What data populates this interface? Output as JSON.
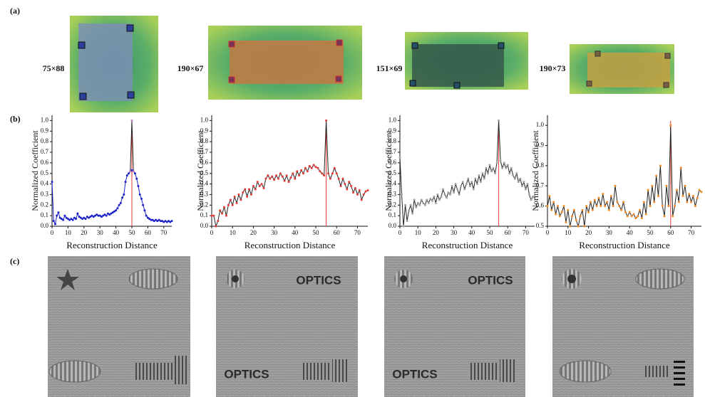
{
  "panel_labels": [
    "(a)",
    "(b)",
    "(c)"
  ],
  "sizes": [
    "75×88",
    "190×67",
    "151×69",
    "190×73"
  ],
  "reconstruction_texts": {
    "image_2": [
      "OPTICS",
      "OPTICS"
    ],
    "image_3": [
      "OPTICS",
      "OPTICS"
    ]
  },
  "chart_data": [
    {
      "type": "line",
      "xlabel": "Reconstruction Distance",
      "ylabel": "Normalized Coefficient",
      "x": [
        0,
        1,
        2,
        3,
        4,
        5,
        6,
        7,
        8,
        9,
        10,
        11,
        12,
        13,
        14,
        15,
        16,
        17,
        18,
        19,
        20,
        21,
        22,
        23,
        24,
        25,
        26,
        27,
        28,
        29,
        30,
        31,
        32,
        33,
        34,
        35,
        36,
        37,
        38,
        39,
        40,
        41,
        42,
        43,
        44,
        45,
        46,
        47,
        48,
        49,
        50,
        51,
        52,
        53,
        54,
        55,
        56,
        57,
        58,
        59,
        60,
        61,
        62,
        63,
        64,
        65,
        66,
        67,
        68,
        69,
        70,
        71,
        72,
        73,
        74,
        75
      ],
      "xlim": [
        0,
        75
      ],
      "xticks": [
        0,
        10,
        20,
        30,
        40,
        50,
        60,
        70
      ],
      "ylim": [
        0,
        1.05
      ],
      "yticks": [
        {
          "value": 0,
          "label": "0.0"
        },
        0.1,
        0.2,
        0.3,
        0.4,
        0.5,
        0.6,
        0.7,
        0.8,
        0.9,
        {
          "value": 1,
          "label": "1.0"
        }
      ],
      "peak_x": 50,
      "peak_color": "#e53935",
      "series": [
        {
          "color": "#1c22c8",
          "marker_color": "#1c22c8",
          "values": [
            0.42,
            0.05,
            0.02,
            0.1,
            0.13,
            0.08,
            0.07,
            0.06,
            0.1,
            0.08,
            0.07,
            0.06,
            0.07,
            0.06,
            0.08,
            0.07,
            0.12,
            0.09,
            0.08,
            0.07,
            0.08,
            0.07,
            0.09,
            0.08,
            0.09,
            0.1,
            0.09,
            0.1,
            0.11,
            0.1,
            0.1,
            0.09,
            0.1,
            0.11,
            0.1,
            0.12,
            0.11,
            0.12,
            0.13,
            0.14,
            0.15,
            0.17,
            0.2,
            0.22,
            0.27,
            0.3,
            0.42,
            0.48,
            0.5,
            0.52,
            0.53,
            0.52,
            0.5,
            0.45,
            0.38,
            0.3,
            0.26,
            0.2,
            0.15,
            0.1,
            0.08,
            0.07,
            0.06,
            0.06,
            0.05,
            0.06,
            0.05,
            0.06,
            0.05,
            0.05,
            0.04,
            0.05,
            0.04,
            0.05,
            0.04,
            0.05
          ]
        },
        {
          "color": "#222222",
          "marker_color": "#c080c0",
          "x": [
            49,
            50,
            51
          ],
          "values": [
            0.52,
            1.0,
            0.52
          ]
        }
      ]
    },
    {
      "type": "line",
      "xlabel": "Reconstruction Distance",
      "ylabel": "Normalized Coefficient",
      "x": [
        0,
        1,
        2,
        3,
        4,
        5,
        6,
        7,
        8,
        9,
        10,
        11,
        12,
        13,
        14,
        15,
        16,
        17,
        18,
        19,
        20,
        21,
        22,
        23,
        24,
        25,
        26,
        27,
        28,
        29,
        30,
        31,
        32,
        33,
        34,
        35,
        36,
        37,
        38,
        39,
        40,
        41,
        42,
        43,
        44,
        45,
        46,
        47,
        48,
        49,
        50,
        51,
        52,
        53,
        54,
        55,
        56,
        57,
        58,
        59,
        60,
        61,
        62,
        63,
        64,
        65,
        66,
        67,
        68,
        69,
        70,
        71,
        72,
        73,
        74,
        75
      ],
      "xlim": [
        0,
        75
      ],
      "xticks": [
        0,
        10,
        20,
        30,
        40,
        50,
        60,
        70
      ],
      "ylim": [
        0,
        1.05
      ],
      "yticks": [
        {
          "value": 0,
          "label": "0.0"
        },
        0.1,
        0.2,
        0.3,
        0.4,
        0.5,
        0.6,
        0.7,
        0.8,
        0.9,
        {
          "value": 1,
          "label": "1.0"
        }
      ],
      "peak_x": 55,
      "peak_color": "#e53935",
      "series": [
        {
          "color": "#222222",
          "marker_color": "#e53935",
          "values": [
            0.1,
            0.1,
            0.0,
            0.05,
            0.15,
            0.12,
            0.18,
            0.1,
            0.2,
            0.25,
            0.2,
            0.28,
            0.22,
            0.3,
            0.25,
            0.32,
            0.35,
            0.28,
            0.35,
            0.3,
            0.38,
            0.35,
            0.42,
            0.38,
            0.4,
            0.36,
            0.45,
            0.48,
            0.45,
            0.47,
            0.44,
            0.48,
            0.45,
            0.5,
            0.47,
            0.43,
            0.48,
            0.42,
            0.46,
            0.5,
            0.45,
            0.52,
            0.48,
            0.53,
            0.5,
            0.55,
            0.52,
            0.57,
            0.55,
            0.58,
            0.56,
            0.55,
            0.52,
            0.5,
            0.48,
            1.0,
            0.5,
            0.45,
            0.5,
            0.55,
            0.5,
            0.45,
            0.38,
            0.45,
            0.4,
            0.35,
            0.42,
            0.38,
            0.32,
            0.36,
            0.3,
            0.34,
            0.25,
            0.3,
            0.33,
            0.34
          ]
        }
      ]
    },
    {
      "type": "line",
      "xlabel": "Reconstruction Distance",
      "ylabel": "Normalized Coefficient",
      "x": [
        0,
        1,
        2,
        3,
        4,
        5,
        6,
        7,
        8,
        9,
        10,
        11,
        12,
        13,
        14,
        15,
        16,
        17,
        18,
        19,
        20,
        21,
        22,
        23,
        24,
        25,
        26,
        27,
        28,
        29,
        30,
        31,
        32,
        33,
        34,
        35,
        36,
        37,
        38,
        39,
        40,
        41,
        42,
        43,
        44,
        45,
        46,
        47,
        48,
        49,
        50,
        51,
        52,
        53,
        54,
        55,
        56,
        57,
        58,
        59,
        60,
        61,
        62,
        63,
        64,
        65,
        66,
        67,
        68,
        69,
        70,
        71,
        72,
        73,
        74,
        75
      ],
      "xlim": [
        0,
        75
      ],
      "xticks": [
        0,
        10,
        20,
        30,
        40,
        50,
        60,
        70
      ],
      "ylim": [
        0,
        1.05
      ],
      "yticks": [
        {
          "value": 0,
          "label": "0.0"
        },
        0.1,
        0.2,
        0.3,
        0.4,
        0.5,
        0.6,
        0.7,
        0.8,
        0.9,
        {
          "value": 1,
          "label": "1.0"
        }
      ],
      "peak_x": 55,
      "peak_color": "#e53935",
      "series": [
        {
          "color": "#222222",
          "marker_color": "#a0a0a0",
          "values": [
            0.65,
            0.3,
            0.0,
            0.2,
            0.05,
            0.15,
            0.2,
            0.12,
            0.25,
            0.18,
            0.22,
            0.2,
            0.25,
            0.22,
            0.2,
            0.25,
            0.22,
            0.26,
            0.24,
            0.28,
            0.22,
            0.3,
            0.25,
            0.28,
            0.35,
            0.3,
            0.27,
            0.32,
            0.3,
            0.38,
            0.32,
            0.4,
            0.35,
            0.3,
            0.38,
            0.42,
            0.35,
            0.4,
            0.45,
            0.38,
            0.42,
            0.35,
            0.45,
            0.4,
            0.48,
            0.42,
            0.5,
            0.45,
            0.55,
            0.5,
            0.58,
            0.52,
            0.55,
            0.5,
            0.6,
            1.0,
            0.62,
            0.55,
            0.6,
            0.55,
            0.58,
            0.5,
            0.55,
            0.48,
            0.45,
            0.5,
            0.42,
            0.45,
            0.38,
            0.42,
            0.35,
            0.4,
            0.3,
            0.25,
            0.28,
            0.27
          ]
        }
      ]
    },
    {
      "type": "line",
      "xlabel": "Reconstruction Distance",
      "ylabel": "Normalized Coefficient",
      "x": [
        0,
        1,
        2,
        3,
        4,
        5,
        6,
        7,
        8,
        9,
        10,
        11,
        12,
        13,
        14,
        15,
        16,
        17,
        18,
        19,
        20,
        21,
        22,
        23,
        24,
        25,
        26,
        27,
        28,
        29,
        30,
        31,
        32,
        33,
        34,
        35,
        36,
        37,
        38,
        39,
        40,
        41,
        42,
        43,
        44,
        45,
        46,
        47,
        48,
        49,
        50,
        51,
        52,
        53,
        54,
        55,
        56,
        57,
        58,
        59,
        60,
        61,
        62,
        63,
        64,
        65,
        66,
        67,
        68,
        69,
        70,
        71,
        72,
        73,
        74,
        75
      ],
      "xlim": [
        0,
        75
      ],
      "xticks": [
        0,
        10,
        20,
        30,
        40,
        50,
        60,
        70
      ],
      "ylim": [
        0.5,
        1.05
      ],
      "yticks": [
        0.5,
        0.6,
        0.7,
        0.8,
        0.9,
        {
          "value": 1,
          "label": "1.0"
        }
      ],
      "peak_x": 60,
      "peak_color": "#e53935",
      "series": [
        {
          "color": "#222222",
          "marker_color": "#f08a24",
          "values": [
            0.6,
            0.65,
            0.58,
            0.62,
            0.56,
            0.6,
            0.55,
            0.57,
            0.6,
            0.52,
            0.58,
            0.5,
            0.55,
            0.58,
            0.53,
            0.5,
            0.55,
            0.58,
            0.5,
            0.6,
            0.57,
            0.62,
            0.58,
            0.63,
            0.6,
            0.64,
            0.6,
            0.66,
            0.6,
            0.62,
            0.58,
            0.65,
            0.6,
            0.7,
            0.62,
            0.6,
            0.58,
            0.62,
            0.57,
            0.55,
            0.57,
            0.55,
            0.56,
            0.54,
            0.55,
            0.58,
            0.54,
            0.62,
            0.56,
            0.68,
            0.6,
            0.7,
            0.62,
            0.75,
            0.65,
            0.8,
            0.6,
            0.55,
            0.7,
            0.6,
            1.0,
            0.55,
            0.6,
            0.68,
            0.62,
            0.79,
            0.65,
            0.7,
            0.62,
            0.66,
            0.62,
            0.65,
            0.6,
            0.64,
            0.68,
            0.67
          ]
        }
      ]
    }
  ]
}
